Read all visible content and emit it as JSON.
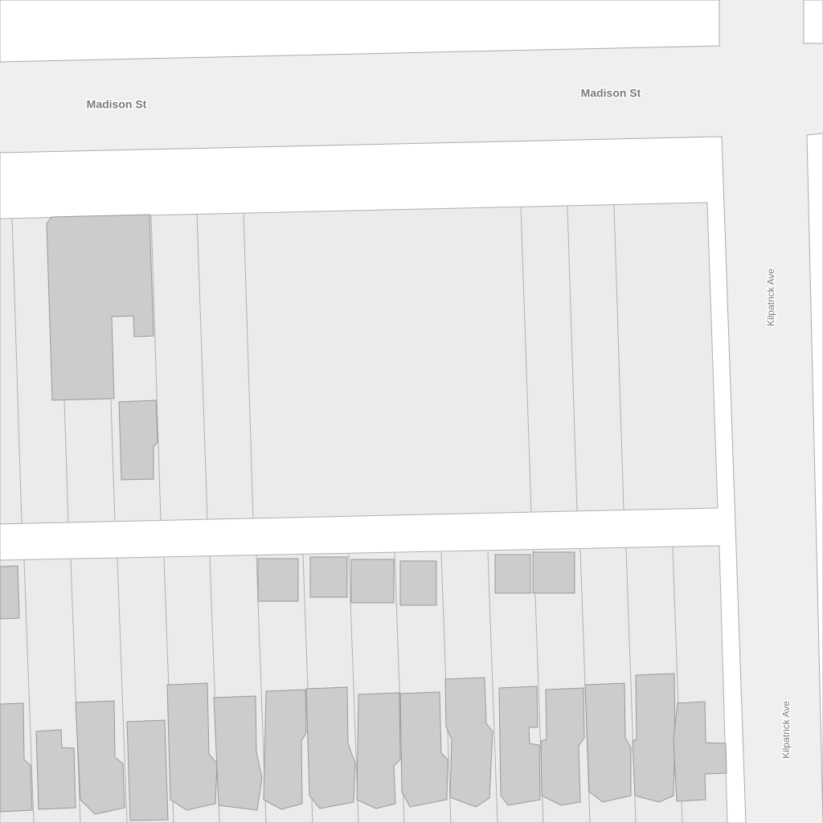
{
  "labels": [
    "Madison St",
    "Madison St",
    "Kilpatrick Ave",
    "Kilpatrick Ave"
  ]
}
